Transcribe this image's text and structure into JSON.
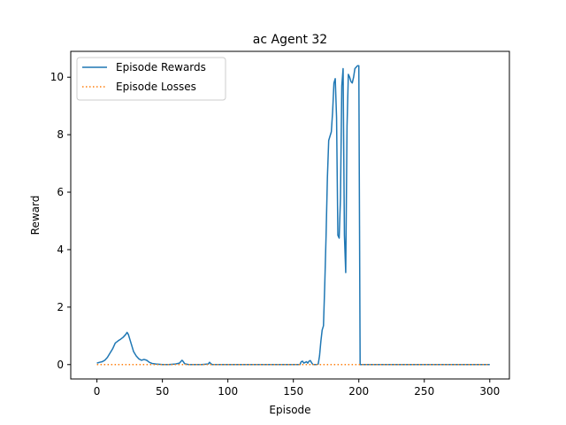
{
  "chart_data": {
    "type": "line",
    "title": "ac Agent 32",
    "xlabel": "Episode",
    "ylabel": "Reward",
    "xlim": [
      -20,
      315
    ],
    "ylim": [
      -0.5,
      10.9
    ],
    "xticks": [
      0,
      50,
      100,
      150,
      200,
      250,
      300
    ],
    "yticks": [
      0,
      2,
      4,
      6,
      8,
      10
    ],
    "grid": false,
    "legend_position": "top-left",
    "series": [
      {
        "name": "Episode Rewards",
        "style": "solid",
        "color": "#1f77b4",
        "x": [
          0,
          2,
          4,
          6,
          8,
          10,
          12,
          14,
          16,
          17,
          18,
          20,
          22,
          23,
          24,
          25,
          26,
          27,
          28,
          30,
          32,
          34,
          36,
          38,
          40,
          42,
          45,
          50,
          55,
          60,
          63,
          64,
          65,
          66,
          67,
          70,
          80,
          85,
          86,
          87,
          88,
          90,
          100,
          110,
          120,
          130,
          140,
          150,
          155,
          156,
          157,
          158,
          160,
          161,
          162,
          163,
          164,
          165,
          168,
          169,
          170,
          171,
          172,
          173,
          174,
          175,
          176,
          177,
          178,
          179,
          180,
          181,
          182,
          183,
          184,
          185,
          186,
          187,
          188,
          189,
          190,
          191,
          192,
          193,
          194,
          195,
          196,
          197,
          198,
          199,
          200,
          201,
          205,
          220,
          240,
          260,
          280,
          300
        ],
        "y": [
          0.05,
          0.08,
          0.1,
          0.15,
          0.25,
          0.4,
          0.55,
          0.75,
          0.82,
          0.85,
          0.88,
          0.95,
          1.05,
          1.12,
          1.05,
          0.9,
          0.75,
          0.6,
          0.45,
          0.3,
          0.2,
          0.15,
          0.18,
          0.15,
          0.08,
          0.04,
          0.02,
          0.0,
          0.0,
          0.02,
          0.05,
          0.1,
          0.15,
          0.1,
          0.03,
          0.0,
          0.0,
          0.02,
          0.08,
          0.03,
          0.0,
          0.0,
          0.0,
          0.0,
          0.0,
          0.0,
          0.0,
          0.0,
          0.0,
          0.1,
          0.12,
          0.05,
          0.1,
          0.05,
          0.12,
          0.14,
          0.06,
          0.0,
          0.0,
          0.02,
          0.3,
          0.8,
          1.2,
          1.35,
          2.8,
          4.5,
          6.5,
          7.8,
          7.95,
          8.1,
          8.8,
          9.8,
          9.95,
          8.6,
          4.5,
          4.4,
          5.8,
          9.7,
          10.3,
          4.5,
          3.2,
          8.3,
          10.1,
          10.0,
          9.85,
          9.8,
          10.0,
          10.3,
          10.35,
          10.4,
          10.4,
          0.0,
          0.0,
          0.0,
          0.0,
          0.0,
          0.0,
          0.0
        ]
      },
      {
        "name": "Episode Losses",
        "style": "dotted",
        "color": "#ff7f0e",
        "x": [
          0,
          300
        ],
        "y": [
          0,
          0
        ]
      }
    ]
  }
}
